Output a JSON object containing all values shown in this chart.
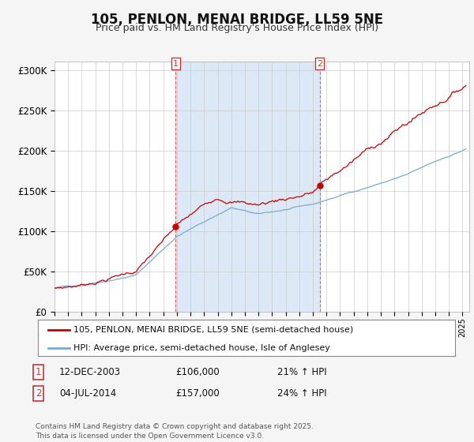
{
  "title": "105, PENLON, MENAI BRIDGE, LL59 5NE",
  "subtitle": "Price paid vs. HM Land Registry's House Price Index (HPI)",
  "ylim": [
    0,
    310000
  ],
  "yticks": [
    0,
    50000,
    100000,
    150000,
    200000,
    250000,
    300000
  ],
  "ytick_labels": [
    "£0",
    "£50K",
    "£100K",
    "£150K",
    "£200K",
    "£250K",
    "£300K"
  ],
  "sale1_date": "12-DEC-2003",
  "sale1_price": 106000,
  "sale1_hpi": "21% ↑ HPI",
  "sale2_date": "04-JUL-2014",
  "sale2_price": 157000,
  "sale2_hpi": "24% ↑ HPI",
  "sale1_year": 2003.917,
  "sale2_year": 2014.5,
  "line1_color": "#cc0000",
  "line2_color": "#7aaacc",
  "vline_color": "#dd6666",
  "dot_color": "#cc0000",
  "shade_color": "#dce8f5",
  "legend1_label": "105, PENLON, MENAI BRIDGE, LL59 5NE (semi-detached house)",
  "legend2_label": "HPI: Average price, semi-detached house, Isle of Anglesey",
  "footnote": "Contains HM Land Registry data © Crown copyright and database right 2025.\nThis data is licensed under the Open Government Licence v3.0.",
  "plot_bg_color": "#ffffff",
  "grid_color": "#cccccc",
  "title_fontsize": 12,
  "subtitle_fontsize": 9,
  "marker_box_color": "#cc3333",
  "start_year": 1995,
  "end_year": 2025,
  "end_month": 4
}
